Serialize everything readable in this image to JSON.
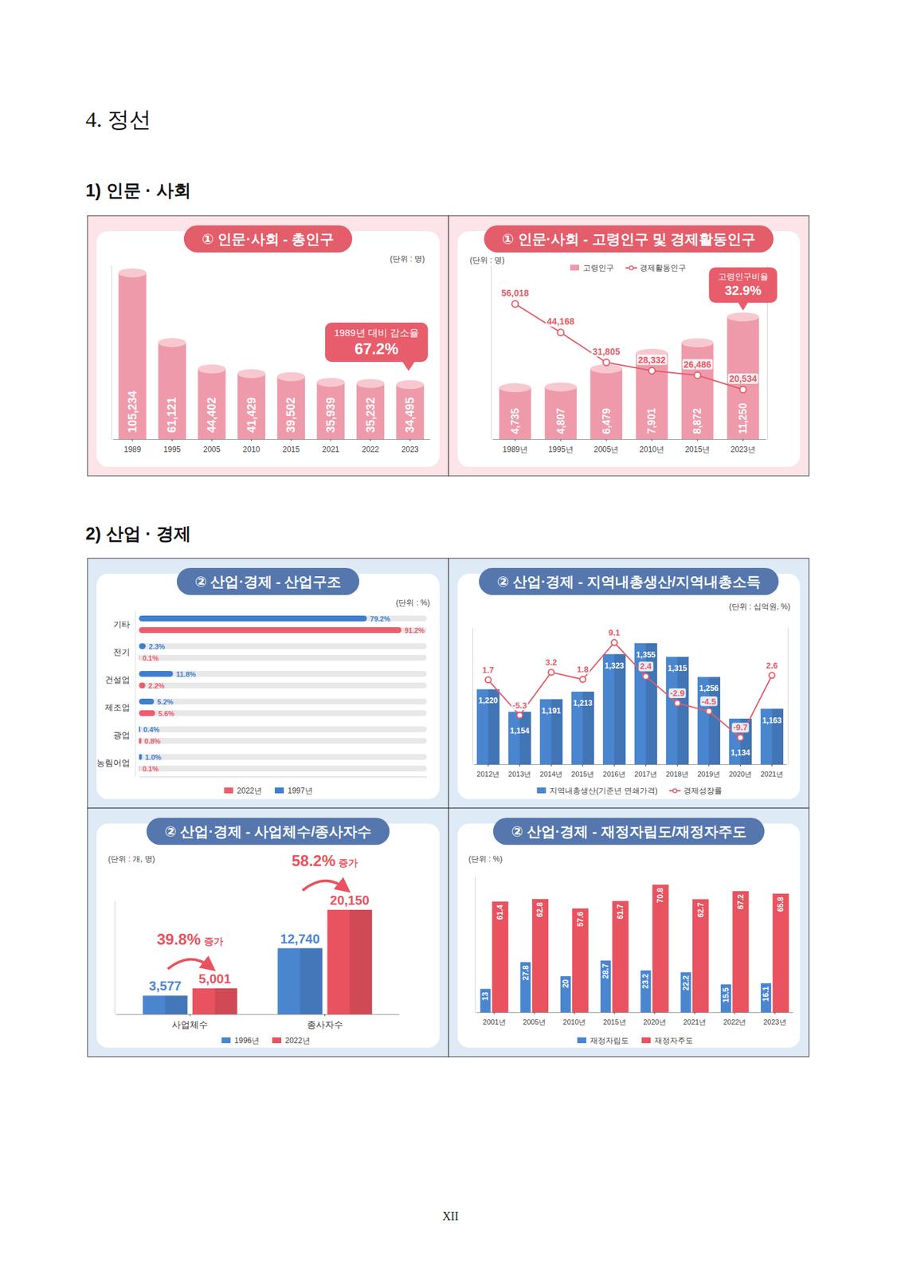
{
  "heading": "4. 정선",
  "sections": [
    "1) 인문 · 사회",
    "2) 산업 · 경제"
  ],
  "page_number": "XII",
  "chart_data": [
    {
      "type": "bar",
      "title": "① 인문·사회 - 총인구",
      "unit": "(단위 : 명)",
      "categories": [
        "1989",
        "1995",
        "2005",
        "2010",
        "2015",
        "2021",
        "2022",
        "2023"
      ],
      "values": [
        105234,
        61121,
        44402,
        41429,
        39502,
        35939,
        35232,
        34495
      ],
      "value_labels": [
        "105,234",
        "61,121",
        "44,402",
        "41,429",
        "39,502",
        "35,939",
        "35,232",
        "34,495"
      ],
      "color": "#ef9aaa",
      "ylim": [
        0,
        110000
      ],
      "data_labels": true,
      "tick_labels": "x",
      "annotation": {
        "label": "1989년 대비 감소율",
        "value": "67.2%"
      }
    },
    {
      "type": "bar",
      "title": "① 인문·사회 - 고령인구 및 경제활동인구",
      "unit": "(단위 : 명)",
      "categories": [
        "1989년",
        "1995년",
        "2005년",
        "2010년",
        "2015년",
        "2023년"
      ],
      "series": [
        {
          "name": "고령인구",
          "type": "bar",
          "color": "#ef9aaa",
          "values": [
            4735,
            4807,
            6479,
            7901,
            8872,
            11250
          ],
          "value_labels": [
            "4,735",
            "4,807",
            "6,479",
            "7,901",
            "8,872",
            "11,250"
          ]
        },
        {
          "name": "경제활동인구",
          "type": "line",
          "axis": "y2",
          "color": "#e35d6a",
          "marker": "circle",
          "values": [
            56018,
            44168,
            31805,
            28332,
            26486,
            20534
          ],
          "value_labels": [
            "56,018",
            "44,168",
            "31,805",
            "28,332",
            "26,486",
            "20,534"
          ]
        }
      ],
      "ylim": [
        0,
        16000
      ],
      "y2lim": [
        0,
        72000
      ],
      "legend": "top",
      "data_labels": true,
      "tick_labels": "x",
      "annotation": {
        "label": "고령인구비율",
        "value": "32.9%"
      }
    },
    {
      "type": "bar",
      "orientation": "horizontal",
      "title": "② 산업·경제 - 산업구조",
      "unit": "(단위 : %)",
      "categories": [
        "기타",
        "전기",
        "건설업",
        "제조업",
        "광업",
        "농림어업"
      ],
      "series": [
        {
          "name": "1997년",
          "color": "#3f7fd1",
          "values": [
            79.2,
            2.3,
            11.8,
            5.2,
            0.4,
            1.0
          ],
          "value_labels": [
            "79.2%",
            "2.3%",
            "11.8%",
            "5.2%",
            "0.4%",
            "1.0%"
          ]
        },
        {
          "name": "2022년",
          "color": "#ee5c6c",
          "values": [
            91.2,
            0.1,
            2.2,
            5.6,
            0.8,
            0.1
          ],
          "value_labels": [
            "91.2%",
            "0.1%",
            "2.2%",
            "5.6%",
            "0.8%",
            "0.1%"
          ]
        }
      ],
      "xlim": [
        0,
        100
      ],
      "legend": "bottom",
      "data_labels": true,
      "tick_labels": "y"
    },
    {
      "type": "bar",
      "title": "② 산업·경제 - 지역내총생산/지역내총소득",
      "unit": "(단위 : 십억원, %)",
      "categories": [
        "2012년",
        "2013년",
        "2014년",
        "2015년",
        "2016년",
        "2017년",
        "2018년",
        "2019년",
        "2020년",
        "2021년"
      ],
      "series": [
        {
          "name": "지역내총생산(기준년 연쇄가격)",
          "type": "bar",
          "color": "#4a86cf",
          "values": [
            1220,
            1154,
            1191,
            1213,
            1323,
            1355,
            1315,
            1256,
            1134,
            1163
          ],
          "value_labels": [
            "1,220",
            "1,154",
            "1,191",
            "1,213",
            "1,323",
            "1,355",
            "1,315",
            "1,256",
            "1,134",
            "1,163"
          ]
        },
        {
          "name": "경제성장률",
          "type": "line",
          "axis": "y2",
          "color": "#e35d6a",
          "marker": "circle",
          "values": [
            1.7,
            -5.3,
            3.2,
            1.8,
            9.1,
            2.4,
            -2.9,
            -4.5,
            -9.7,
            2.6
          ]
        }
      ],
      "ylim": [
        1000,
        1400
      ],
      "y2lim": [
        -15,
        12
      ],
      "legend": "bottom",
      "data_labels": true,
      "tick_labels": "x"
    },
    {
      "type": "bar",
      "title": "② 산업·경제 - 사업체수/종사자수",
      "unit": "(단위 : 개, 명)",
      "categories": [
        "사업체수",
        "종사자수"
      ],
      "series": [
        {
          "name": "1996년",
          "color": "#4a86cf",
          "values": [
            3577,
            12740
          ],
          "value_labels": [
            "3,577",
            "12,740"
          ]
        },
        {
          "name": "2022년",
          "color": "#e8535f",
          "values": [
            5001,
            20150
          ],
          "value_labels": [
            "5,001",
            "20,150"
          ]
        }
      ],
      "ylim": [
        0,
        22000
      ],
      "legend": "bottom",
      "data_labels": true,
      "tick_labels": "x",
      "annotations": [
        {
          "value": "39.8%",
          "label": "증가"
        },
        {
          "value": "58.2%",
          "label": "증가"
        }
      ]
    },
    {
      "type": "bar",
      "title": "② 산업·경제 - 재정자립도/재정자주도",
      "unit": "(단위 : %)",
      "categories": [
        "2001년",
        "2005년",
        "2010년",
        "2015년",
        "2020년",
        "2021년",
        "2022년",
        "2023년"
      ],
      "series": [
        {
          "name": "재정자립도",
          "color": "#4a86cf",
          "values": [
            13,
            27.8,
            20,
            28.7,
            23.2,
            22.2,
            15.5,
            16.1
          ]
        },
        {
          "name": "재정자주도",
          "color": "#e8535f",
          "values": [
            61.4,
            62.8,
            57.6,
            61.7,
            70.8,
            62.7,
            67.2,
            65.8
          ]
        }
      ],
      "ylim": [
        0,
        75
      ],
      "legend": "bottom",
      "data_labels": true,
      "tick_labels": "x"
    }
  ]
}
